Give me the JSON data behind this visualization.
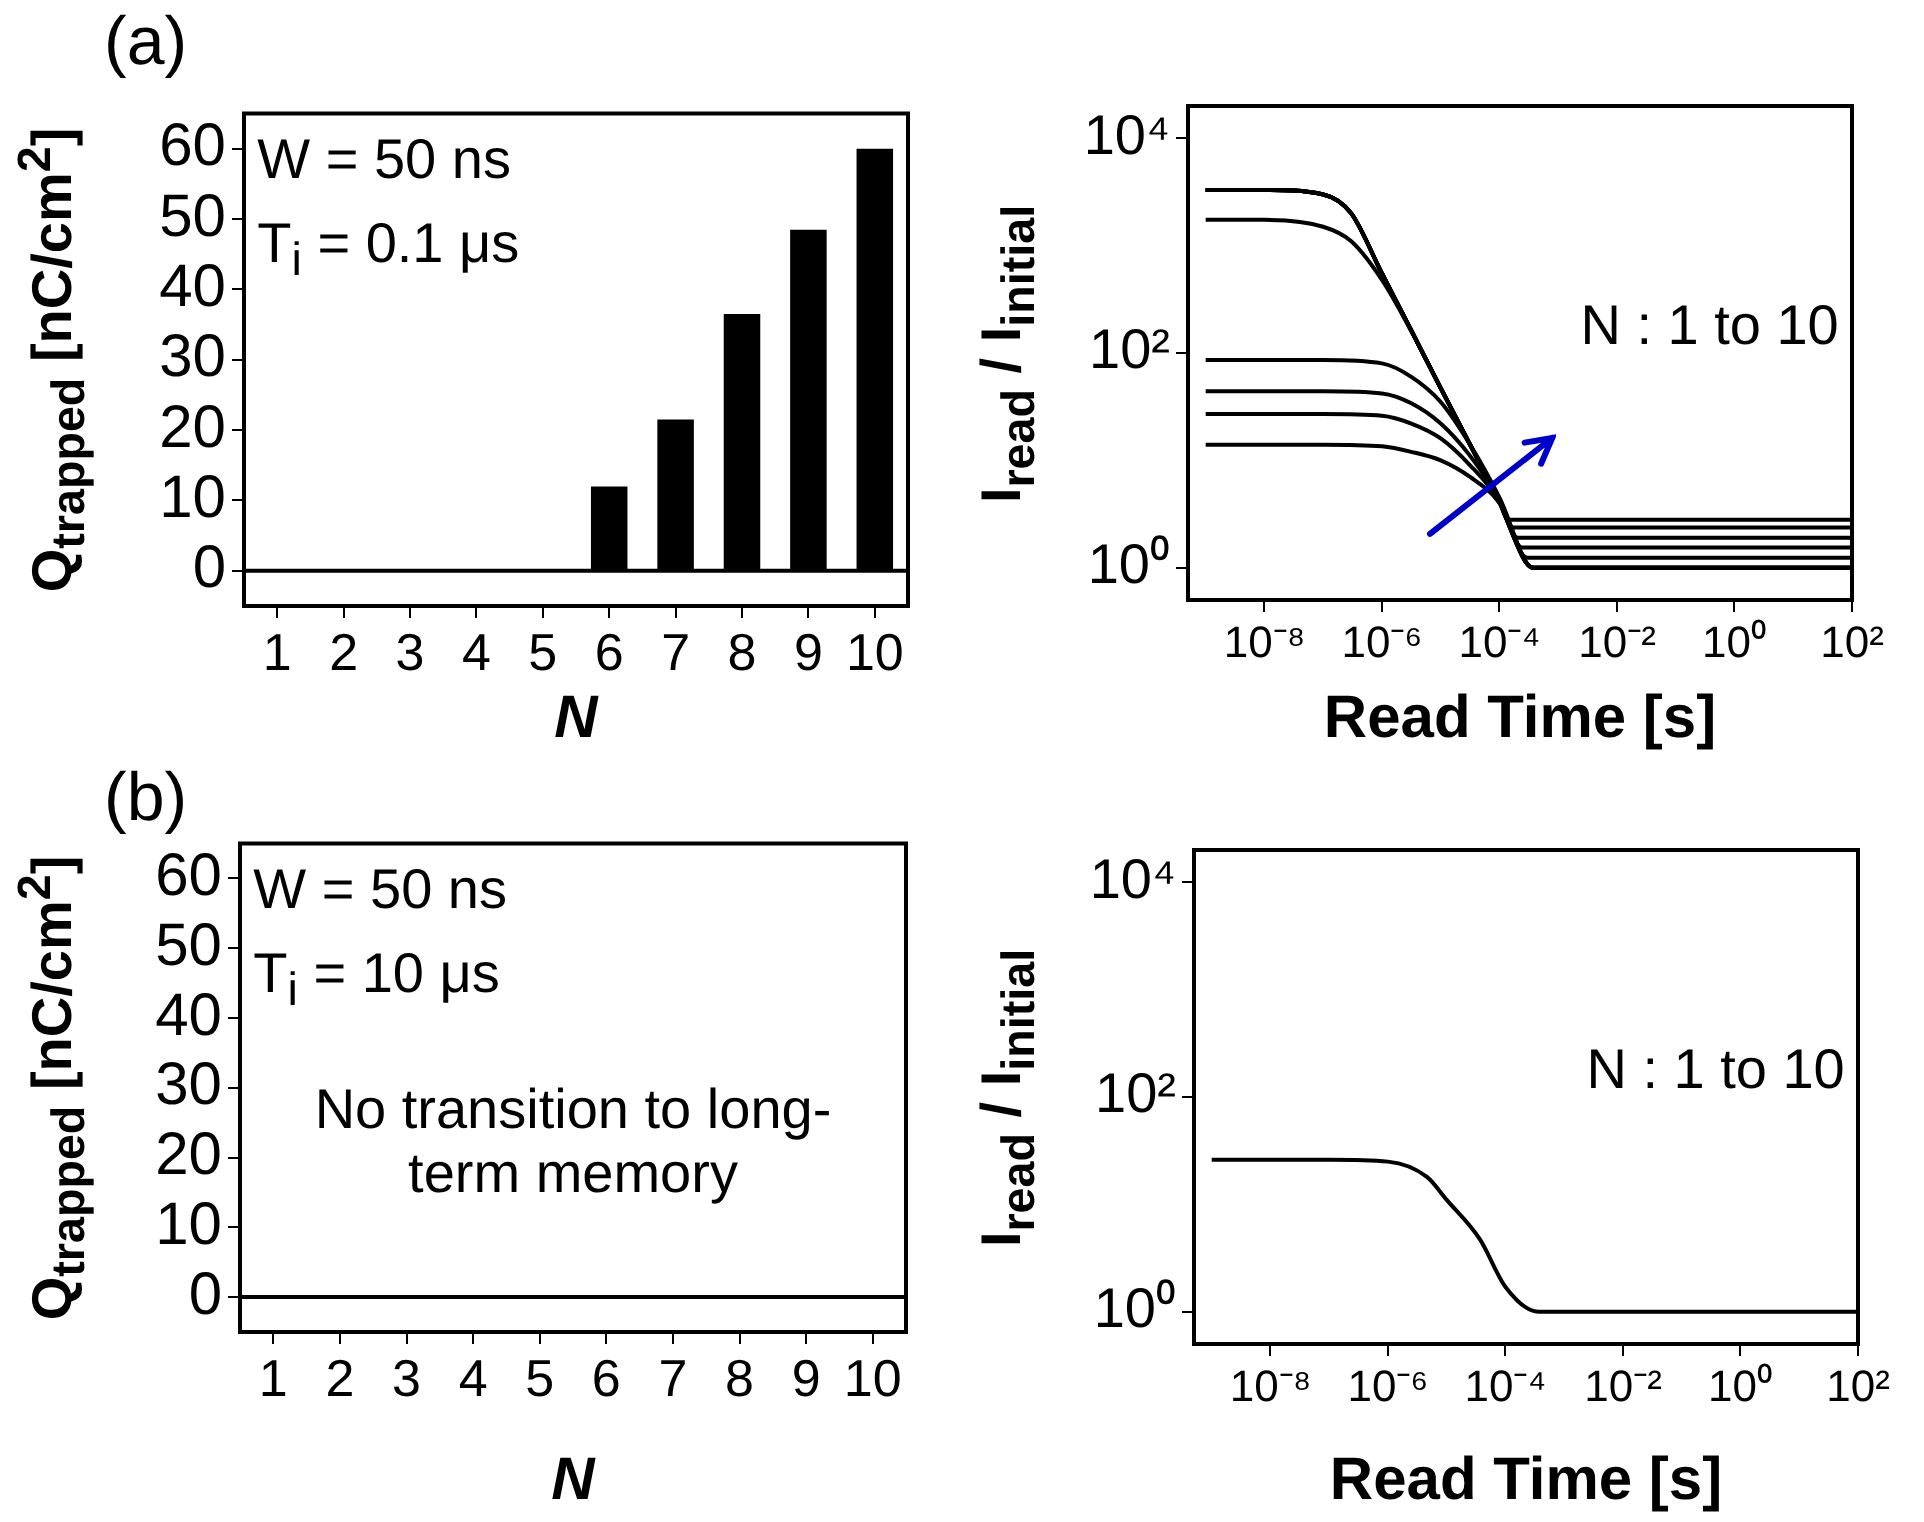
{
  "chart_data": [
    {
      "type": "bar",
      "title": "(a)",
      "xlabel": "N",
      "ylabel": "Q$_{trapped}$ [nC/cm$^{2}$]",
      "categories": [
        "1",
        "2",
        "3",
        "4",
        "5",
        "6",
        "7",
        "8",
        "9",
        "10"
      ],
      "values": [
        0,
        0,
        0,
        0,
        0,
        12,
        21.5,
        36.5,
        48.5,
        60
      ],
      "color": "#000000",
      "ylim": [
        -5,
        65
      ],
      "yticks": [
        0,
        10,
        20,
        30,
        40,
        50,
        60
      ],
      "ref_lines": [
        {
          "axis": "y",
          "value": 0,
          "color": "#000000"
        }
      ],
      "annotations": [
        "W = 50 ns",
        "T$_{i}$ = 0.1 μs"
      ]
    },
    {
      "type": "line",
      "xlabel": "Read Time [s]",
      "ylabel": "I$_{read}$ / I$_{initial}$",
      "log": "xy",
      "xlim": [
        5e-10,
        100
      ],
      "ylim": [
        0.5,
        20000
      ],
      "xticks": [
        {
          "value": 1e-08,
          "label": "10⁻⁸"
        },
        {
          "value": 1e-06,
          "label": "10⁻⁶"
        },
        {
          "value": 0.0001,
          "label": "10⁻⁴"
        },
        {
          "value": 0.01,
          "label": "10⁻²"
        },
        {
          "value": 1,
          "label": "10⁰"
        },
        {
          "value": 100,
          "label": "10²"
        }
      ],
      "yticks": [
        {
          "value": 1,
          "label": "10⁰"
        },
        {
          "value": 100,
          "label": "10²"
        },
        {
          "value": 10000,
          "label": "10⁴"
        }
      ],
      "annotations": [
        "N : 1 to 10"
      ],
      "series": [
        {
          "color": "#000000",
          "x": [
            1e-09,
            1e-07,
            1e-06,
            3.16e-06,
            1e-05,
            3.16e-05,
            0.0001,
            0.00037,
            100
          ],
          "values": [
            14,
            14,
            13.5,
            12,
            10,
            7,
            4,
            1,
            1
          ]
        },
        {
          "color": "#000000",
          "x": [
            1e-09,
            1e-07,
            1e-06,
            3.16e-06,
            1e-05,
            3.16e-05,
            0.0001,
            0.00037,
            100
          ],
          "values": [
            27,
            27,
            26,
            22,
            16,
            9,
            4.2,
            1,
            1
          ]
        },
        {
          "color": "#000000",
          "x": [
            1e-09,
            1e-07,
            1e-06,
            3.16e-06,
            1e-05,
            3.16e-05,
            0.0001,
            0.00037,
            100
          ],
          "values": [
            44,
            44,
            42,
            34,
            22,
            11,
            4.3,
            1,
            1
          ]
        },
        {
          "color": "#000000",
          "x": [
            1e-09,
            1e-07,
            1e-06,
            3.16e-06,
            1e-05,
            3.16e-05,
            0.0001,
            0.00037,
            100
          ],
          "values": [
            86,
            86,
            80,
            60,
            35,
            14,
            4.5,
            1,
            1
          ]
        },
        {
          "color": "#000000",
          "x": [
            1e-09,
            1e-08,
            1e-07,
            3e-07,
            1e-06,
            3.16e-06,
            1e-05,
            3.16e-05,
            0.0001,
            0.00037,
            100
          ],
          "values": [
            1740,
            1740,
            1500,
            1100,
            480,
            160,
            47,
            14,
            4.1,
            1,
            1
          ]
        },
        {
          "color": "#000000",
          "x": [
            1e-09,
            1e-08,
            1e-07,
            3e-07,
            1e-06,
            3.16e-06,
            1e-05,
            3.16e-05,
            0.0001,
            0.0003,
            100
          ],
          "values": [
            3300,
            3300,
            3000,
            2000,
            550,
            162,
            47,
            14,
            4.1,
            1.24,
            1.24
          ]
        },
        {
          "color": "#000000",
          "x": [
            1e-09,
            1e-08,
            1e-07,
            3e-07,
            1e-06,
            3.16e-06,
            1e-05,
            3.16e-05,
            0.0001,
            0.000245,
            100
          ],
          "values": [
            3300,
            3300,
            3000,
            2000,
            550,
            162,
            47,
            14,
            4.1,
            1.54,
            1.54
          ]
        },
        {
          "color": "#000000",
          "x": [
            1e-09,
            1e-08,
            1e-07,
            3e-07,
            1e-06,
            3.16e-06,
            1e-05,
            3.16e-05,
            0.0001,
            0.000204,
            100
          ],
          "values": [
            3300,
            3300,
            3000,
            2000,
            550,
            162,
            47,
            14,
            4.1,
            1.9,
            1.9
          ]
        },
        {
          "color": "#000000",
          "x": [
            1e-09,
            1e-08,
            1e-07,
            3e-07,
            1e-06,
            3.16e-06,
            1e-05,
            3.16e-05,
            0.0001,
            0.000166,
            100
          ],
          "values": [
            3300,
            3300,
            3000,
            2000,
            550,
            162,
            47,
            14,
            4.1,
            2.37,
            2.37
          ]
        },
        {
          "color": "#000000",
          "x": [
            1e-09,
            1e-08,
            1e-07,
            3e-07,
            1e-06,
            3.16e-06,
            1e-05,
            3.16e-05,
            0.0001,
            0.00014,
            100
          ],
          "values": [
            3300,
            3300,
            3000,
            2000,
            550,
            162,
            47,
            14,
            4.1,
            2.8,
            2.8
          ]
        }
      ]
    },
    {
      "type": "bar",
      "title": "(b)",
      "xlabel": "N",
      "ylabel": "Q$_{trapped}$ [nC/cm$^{2}$]",
      "categories": [
        "1",
        "2",
        "3",
        "4",
        "5",
        "6",
        "7",
        "8",
        "9",
        "10"
      ],
      "values": [
        0,
        0,
        0,
        0,
        0,
        0,
        0,
        0,
        0,
        0
      ],
      "color": "#000000",
      "ylim": [
        -5,
        65
      ],
      "yticks": [
        0,
        10,
        20,
        30,
        40,
        50,
        60
      ],
      "ref_lines": [
        {
          "axis": "y",
          "value": 0,
          "color": "#000000"
        }
      ],
      "annotations": [
        "W = 50 ns",
        "T$_{i}$ = 10 μs",
        "No transition to long-term memory"
      ]
    },
    {
      "type": "line",
      "xlabel": "Read Time [s]",
      "ylabel": "I$_{read}$ / I$_{initial}$",
      "log": "xy",
      "xlim": [
        5e-10,
        100
      ],
      "ylim": [
        0.5,
        20000
      ],
      "xticks": [
        {
          "value": 1e-08,
          "label": "10⁻⁸"
        },
        {
          "value": 1e-06,
          "label": "10⁻⁶"
        },
        {
          "value": 0.0001,
          "label": "10⁻⁴"
        },
        {
          "value": 0.01,
          "label": "10⁻²"
        },
        {
          "value": 1,
          "label": "10⁰"
        },
        {
          "value": 100,
          "label": "10²"
        }
      ],
      "yticks": [
        {
          "value": 1,
          "label": "10⁰"
        },
        {
          "value": 100,
          "label": "10²"
        },
        {
          "value": 10000,
          "label": "10⁴"
        }
      ],
      "annotations": [
        "N : 1 to 10"
      ],
      "series": [
        {
          "color": "#000000",
          "x": [
            1e-09,
            1e-07,
            1e-06,
            4.6e-06,
            1e-05,
            3.7e-05,
            0.0001,
            0.00036,
            100
          ],
          "values": [
            26,
            26,
            25,
            18,
            11,
            4.7,
            1.7,
            1,
            1
          ]
        }
      ]
    }
  ]
}
